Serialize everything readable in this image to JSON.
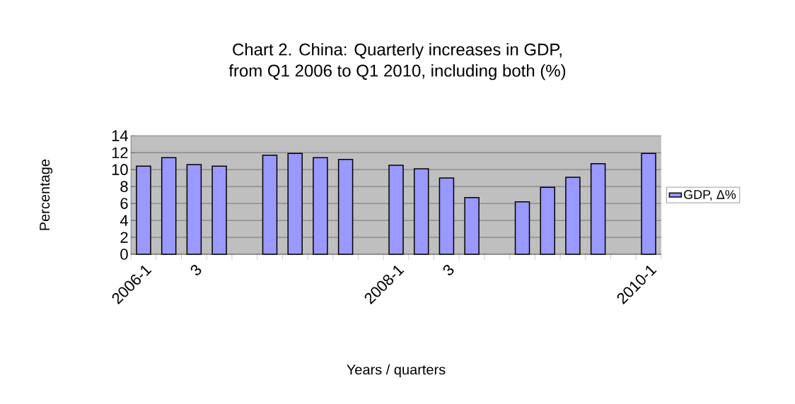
{
  "chart_data": {
    "type": "bar",
    "title": "Chart 2. China: Quarterly increases in GDP,\nfrom Q1 2006 to Q1 2010, including both (%)",
    "xlabel": "Years / quarters",
    "ylabel": "Percentage",
    "categories": [
      "2006-1",
      null,
      "3",
      null,
      null,
      null,
      null,
      null,
      null,
      null,
      "2008-1",
      null,
      "3",
      null,
      null,
      null,
      null,
      null,
      null,
      null,
      "2010-1"
    ],
    "series": [
      {
        "name": "GDP, Δ%",
        "color": "#9999ff",
        "values": [
          10.4,
          11.4,
          10.6,
          10.4,
          null,
          11.7,
          11.9,
          11.4,
          11.2,
          null,
          10.5,
          10.1,
          9.0,
          6.7,
          null,
          6.2,
          7.9,
          9.1,
          10.7,
          null,
          11.9
        ]
      }
    ],
    "ylim": [
      0,
      14
    ],
    "yticks": [
      0,
      2,
      4,
      6,
      8,
      10,
      12,
      14
    ],
    "grid": "y",
    "legend": "right"
  }
}
